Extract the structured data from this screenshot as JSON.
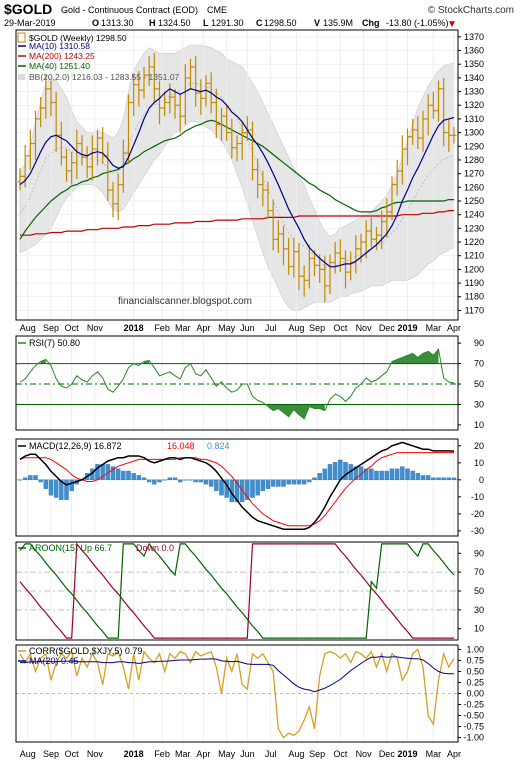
{
  "header": {
    "symbol": "$GOLD",
    "name": "Gold - Continuous Contract (EOD)",
    "exchange": "CME",
    "date": "29-Mar-2019",
    "open_label": "O",
    "open": "1313.30",
    "high_label": "H",
    "high": "1324.50",
    "low_label": "L",
    "low": "1291.30",
    "close_label": "C",
    "close": "1298.50",
    "volume_label": "V",
    "volume": "135.9M",
    "change_label": "Chg",
    "change": "-13.80 (-1.05%)",
    "copyright": "© StockCharts.com"
  },
  "watermark": "financialscanner.blogspot.com",
  "x_axis": {
    "labels": [
      "Aug",
      "Sep",
      "Oct",
      "Nov",
      "2018",
      "Feb",
      "Mar",
      "Apr",
      "May",
      "Jun",
      "Jul",
      "Aug",
      "Sep",
      "Oct",
      "Nov",
      "Dec",
      "2019",
      "Mar",
      "Apr"
    ],
    "label_weeks": [
      1.5,
      6,
      10,
      14.5,
      22,
      27.5,
      31.5,
      35.5,
      40,
      44,
      48.5,
      53.5,
      57.5,
      62,
      66.5,
      71,
      75,
      80,
      84
    ],
    "bold": [
      "2018",
      "2019"
    ]
  },
  "colors": {
    "price_bar": "#c08a00",
    "ma10": "#00008b",
    "ma200": "#c00000",
    "ma40": "#006400",
    "bb_fill": "#e6e6e6",
    "rsi_line": "#228b22",
    "macd_line": "#000000",
    "signal_line": "#ff0000",
    "histogram": "#3f8fd0",
    "aroon_up": "#006400",
    "aroon_down": "#a0002a",
    "corr_line": "#d4a020",
    "corr_ma": "#00008b"
  },
  "chart_data": [
    {
      "type": "line",
      "panel": "price",
      "legend": {
        "main": "$GOLD (Weekly) 1298.50",
        "ma10": "MA(10) 1310.58",
        "ma200": "MA(200) 1243.25",
        "ma40": "MA(40) 1251.40",
        "bb": "BB(20,2.0) 1216.03 - 1283.55 - 1351.07"
      },
      "y_ticks": [
        1170,
        1180,
        1190,
        1200,
        1210,
        1220,
        1230,
        1240,
        1250,
        1260,
        1270,
        1280,
        1290,
        1300,
        1310,
        1320,
        1330,
        1340,
        1350,
        1360,
        1370
      ],
      "ylim": [
        1163,
        1375
      ],
      "closes": [
        1268,
        1283,
        1292,
        1310,
        1318,
        1332,
        1322,
        1298,
        1282,
        1272,
        1278,
        1292,
        1282,
        1275,
        1288,
        1296,
        1283,
        1258,
        1248,
        1262,
        1285,
        1322,
        1335,
        1331,
        1342,
        1348,
        1332,
        1318,
        1322,
        1326,
        1320,
        1312,
        1340,
        1348,
        1329,
        1325,
        1336,
        1322,
        1306,
        1312,
        1300,
        1289,
        1292,
        1300,
        1302,
        1273,
        1262,
        1258,
        1243,
        1222,
        1226,
        1215,
        1202,
        1213,
        1195,
        1192,
        1208,
        1203,
        1200,
        1188,
        1205,
        1212,
        1208,
        1198,
        1205,
        1215,
        1220,
        1228,
        1222,
        1225,
        1235,
        1242,
        1262,
        1272,
        1288,
        1297,
        1302,
        1296,
        1310,
        1320,
        1316,
        1332,
        1300,
        1298,
        1298
      ],
      "ma10": [
        1262,
        1265,
        1270,
        1278,
        1286,
        1293,
        1297,
        1298,
        1296,
        1294,
        1290,
        1286,
        1284,
        1283,
        1285,
        1286,
        1285,
        1281,
        1276,
        1274,
        1275,
        1282,
        1291,
        1300,
        1310,
        1318,
        1322,
        1325,
        1329,
        1332,
        1330,
        1328,
        1330,
        1332,
        1331,
        1330,
        1331,
        1329,
        1326,
        1324,
        1320,
        1315,
        1312,
        1308,
        1302,
        1296,
        1291,
        1285,
        1278,
        1270,
        1262,
        1253,
        1244,
        1237,
        1230,
        1222,
        1216,
        1212,
        1208,
        1205,
        1202,
        1202,
        1203,
        1204,
        1204,
        1206,
        1209,
        1212,
        1215,
        1218,
        1222,
        1226,
        1232,
        1240,
        1250,
        1258,
        1267,
        1274,
        1282,
        1290,
        1298,
        1305,
        1309,
        1310,
        1311
      ],
      "ma40": [
        1222,
        1228,
        1233,
        1238,
        1242,
        1246,
        1250,
        1253,
        1256,
        1258,
        1261,
        1262,
        1264,
        1265,
        1267,
        1268,
        1270,
        1271,
        1272,
        1273,
        1276,
        1278,
        1281,
        1283,
        1286,
        1288,
        1290,
        1292,
        1294,
        1295,
        1296,
        1298,
        1301,
        1303,
        1305,
        1306,
        1308,
        1309,
        1308,
        1306,
        1304,
        1302,
        1300,
        1298,
        1296,
        1294,
        1292,
        1290,
        1287,
        1284,
        1281,
        1278,
        1275,
        1272,
        1269,
        1266,
        1263,
        1261,
        1258,
        1256,
        1254,
        1251,
        1249,
        1247,
        1245,
        1243,
        1242,
        1242,
        1242,
        1243,
        1245,
        1246,
        1248,
        1249,
        1249,
        1250,
        1250,
        1250,
        1250,
        1250,
        1250,
        1250,
        1250,
        1251,
        1251
      ],
      "ma200": [
        1225,
        1225,
        1225,
        1226,
        1226,
        1226,
        1227,
        1227,
        1227,
        1228,
        1228,
        1228,
        1228,
        1229,
        1229,
        1229,
        1230,
        1230,
        1230,
        1230,
        1231,
        1231,
        1231,
        1232,
        1232,
        1232,
        1233,
        1233,
        1233,
        1233,
        1234,
        1234,
        1234,
        1234,
        1235,
        1235,
        1235,
        1235,
        1236,
        1236,
        1236,
        1236,
        1236,
        1237,
        1237,
        1237,
        1237,
        1237,
        1238,
        1238,
        1238,
        1238,
        1238,
        1238,
        1239,
        1239,
        1239,
        1239,
        1239,
        1239,
        1239,
        1239,
        1239,
        1239,
        1239,
        1239,
        1239,
        1239,
        1239,
        1239,
        1239,
        1239,
        1239,
        1239,
        1240,
        1240,
        1240,
        1240,
        1241,
        1241,
        1241,
        1242,
        1242,
        1243,
        1243
      ],
      "bb_upper": [
        1270,
        1278,
        1290,
        1308,
        1322,
        1336,
        1340,
        1338,
        1332,
        1326,
        1316,
        1308,
        1304,
        1300,
        1300,
        1301,
        1300,
        1298,
        1296,
        1300,
        1310,
        1330,
        1345,
        1352,
        1358,
        1362,
        1360,
        1358,
        1358,
        1358,
        1358,
        1360,
        1362,
        1364,
        1364,
        1364,
        1363,
        1362,
        1360,
        1358,
        1354,
        1352,
        1350,
        1348,
        1342,
        1336,
        1330,
        1322,
        1314,
        1306,
        1298,
        1290,
        1282,
        1274,
        1268,
        1262,
        1252,
        1244,
        1235,
        1228,
        1224,
        1226,
        1230,
        1232,
        1234,
        1236,
        1238,
        1240,
        1242,
        1246,
        1250,
        1254,
        1262,
        1270,
        1282,
        1294,
        1306,
        1318,
        1326,
        1334,
        1340,
        1345,
        1349,
        1350,
        1351
      ],
      "bb_lower": [
        1212,
        1214,
        1216,
        1218,
        1222,
        1226,
        1230,
        1238,
        1246,
        1252,
        1256,
        1260,
        1262,
        1262,
        1262,
        1260,
        1256,
        1250,
        1244,
        1242,
        1244,
        1250,
        1256,
        1262,
        1268,
        1274,
        1280,
        1284,
        1290,
        1296,
        1300,
        1302,
        1305,
        1308,
        1308,
        1306,
        1304,
        1302,
        1298,
        1294,
        1288,
        1280,
        1270,
        1260,
        1248,
        1236,
        1224,
        1212,
        1202,
        1194,
        1186,
        1178,
        1172,
        1170,
        1170,
        1172,
        1174,
        1176,
        1176,
        1176,
        1176,
        1178,
        1180,
        1180,
        1182,
        1183,
        1184,
        1186,
        1188,
        1188,
        1188,
        1190,
        1192,
        1192,
        1192,
        1192,
        1194,
        1196,
        1200,
        1204,
        1206,
        1210,
        1212,
        1214,
        1216
      ]
    },
    {
      "type": "line",
      "panel": "rsi",
      "legend": "RSI(7) 50.80",
      "y_ticks": [
        10,
        30,
        50,
        70,
        90
      ],
      "ylim": [
        5,
        97
      ],
      "overbought": 70,
      "oversold": 30,
      "midline": 50,
      "values": [
        52,
        55,
        62,
        68,
        72,
        74,
        68,
        55,
        48,
        46,
        50,
        58,
        54,
        52,
        58,
        62,
        56,
        45,
        42,
        48,
        55,
        66,
        70,
        68,
        72,
        73,
        66,
        58,
        60,
        62,
        58,
        55,
        66,
        70,
        60,
        58,
        64,
        56,
        48,
        52,
        46,
        42,
        44,
        50,
        50,
        38,
        34,
        32,
        28,
        24,
        26,
        22,
        18,
        25,
        20,
        16,
        28,
        26,
        26,
        24,
        35,
        40,
        38,
        33,
        38,
        46,
        50,
        56,
        52,
        54,
        58,
        62,
        72,
        74,
        76,
        78,
        80,
        76,
        80,
        82,
        78,
        84,
        56,
        52,
        51
      ]
    },
    {
      "type": "bar",
      "panel": "macd",
      "legend": {
        "macd": "MACD(12,26,9) 16.872",
        "signal": "16.048",
        "hist": "0.824"
      },
      "y_ticks": [
        -30,
        -20,
        -10,
        0,
        10,
        20
      ],
      "ylim": [
        -33,
        24
      ],
      "macd": [
        12,
        14,
        15,
        15,
        12,
        9,
        5,
        2,
        -1,
        -3,
        -2,
        -1,
        0,
        2,
        4,
        7,
        9,
        11,
        12,
        13,
        13,
        14,
        14,
        14,
        13,
        11,
        10,
        11,
        12,
        13,
        13,
        12,
        13,
        13,
        12,
        11,
        10,
        8,
        5,
        1,
        -3,
        -8,
        -12,
        -16,
        -19,
        -22,
        -24,
        -25,
        -26,
        -27,
        -28,
        -29,
        -29,
        -29,
        -29,
        -29,
        -28,
        -25,
        -21,
        -16,
        -10,
        -5,
        0,
        3,
        5,
        7,
        9,
        11,
        13,
        15,
        17,
        18,
        20,
        21,
        22,
        21,
        20,
        19,
        18,
        18,
        17,
        17,
        17,
        17,
        16.9
      ],
      "signal": [
        12,
        13,
        13,
        13,
        13,
        13,
        12,
        10,
        8,
        6,
        3,
        1,
        0,
        -1,
        -1,
        0,
        2,
        4,
        6,
        8,
        9,
        10,
        11,
        12,
        12,
        12,
        12,
        12,
        12,
        12,
        12,
        13,
        13,
        13,
        13,
        12,
        12,
        11,
        10,
        8,
        5,
        2,
        -2,
        -6,
        -10,
        -14,
        -17,
        -20,
        -22,
        -24,
        -25,
        -26,
        -27,
        -27,
        -27,
        -27,
        -27,
        -26,
        -24,
        -21,
        -17,
        -13,
        -9,
        -5,
        -2,
        1,
        3,
        6,
        8,
        11,
        13,
        14,
        15,
        16,
        16,
        16,
        16,
        16,
        16,
        16,
        16,
        16,
        16,
        16,
        16
      ]
    },
    {
      "type": "line",
      "panel": "aroon",
      "legend": {
        "up": "AROON(15) Up 66.7",
        "down": "Down 0.0"
      },
      "y_ticks": [
        10,
        30,
        50,
        70,
        90
      ],
      "ylim": [
        -2,
        102
      ],
      "aroon_up": [
        93,
        100,
        100,
        93,
        87,
        80,
        73,
        67,
        60,
        53,
        47,
        40,
        33,
        27,
        20,
        13,
        7,
        0,
        0,
        0,
        100,
        100,
        100,
        93,
        87,
        100,
        93,
        87,
        80,
        73,
        67,
        100,
        100,
        93,
        87,
        80,
        73,
        67,
        60,
        53,
        47,
        40,
        33,
        27,
        20,
        13,
        7,
        0,
        0,
        0,
        0,
        0,
        0,
        0,
        0,
        0,
        0,
        0,
        0,
        0,
        0,
        0,
        0,
        0,
        0,
        0,
        0,
        0,
        60,
        53,
        100,
        100,
        100,
        100,
        100,
        100,
        93,
        87,
        100,
        100,
        93,
        87,
        80,
        73,
        67
      ],
      "aroon_down": [
        60,
        53,
        47,
        40,
        33,
        27,
        20,
        13,
        7,
        0,
        0,
        100,
        93,
        87,
        80,
        73,
        67,
        60,
        53,
        47,
        40,
        33,
        27,
        20,
        13,
        7,
        0,
        0,
        0,
        0,
        0,
        0,
        0,
        0,
        0,
        0,
        0,
        0,
        0,
        0,
        0,
        0,
        0,
        0,
        0,
        100,
        100,
        100,
        100,
        100,
        100,
        100,
        100,
        100,
        100,
        100,
        100,
        100,
        100,
        100,
        100,
        100,
        93,
        87,
        80,
        73,
        67,
        60,
        53,
        47,
        40,
        33,
        27,
        20,
        13,
        7,
        0,
        0,
        0,
        0,
        0,
        0,
        0,
        0,
        0
      ]
    },
    {
      "type": "line",
      "panel": "corr",
      "legend": {
        "corr": "CORR($GOLD,$XJY,5) 0.79",
        "ma": "MA(20) 0.45"
      },
      "y_ticks": [
        "1.00",
        "0.75",
        "0.50",
        "0.25",
        "0.00",
        "-0.25",
        "-0.50",
        "-0.75",
        "-1.00"
      ],
      "ylim": [
        -1.1,
        1.1
      ],
      "corr": [
        0.9,
        0.7,
        0.9,
        0.5,
        0.8,
        0.9,
        0.3,
        0.7,
        0.9,
        0.8,
        0.95,
        0.4,
        0.8,
        0.6,
        0.9,
        0.7,
        0.2,
        0.9,
        0.85,
        0.95,
        0.6,
        0.1,
        0.9,
        0.3,
        0.95,
        0.8,
        0.7,
        0.9,
        0.5,
        0.9,
        0.8,
        0.95,
        0.9,
        0.7,
        0.95,
        0.85,
        0.9,
        0.95,
        0.6,
        0.0,
        0.8,
        0.5,
        0.9,
        0.2,
        0.1,
        0.9,
        0.8,
        0.9,
        0.7,
        0.5,
        -0.8,
        -1.0,
        -0.9,
        -0.95,
        -0.85,
        -0.6,
        -0.3,
        -0.8,
        0.4,
        0.9,
        0.95,
        0.9,
        0.8,
        0.9,
        0.7,
        0.95,
        0.9,
        0.8,
        0.95,
        0.6,
        0.9,
        0.5,
        0.9,
        0.8,
        0.3,
        0.5,
        0.9,
        1.0,
        0.6,
        -0.5,
        -0.7,
        0.3,
        0.9,
        0.6,
        0.79
      ],
      "ma": [
        0.7,
        0.7,
        0.72,
        0.72,
        0.73,
        0.73,
        0.72,
        0.72,
        0.73,
        0.73,
        0.74,
        0.72,
        0.72,
        0.72,
        0.72,
        0.72,
        0.7,
        0.7,
        0.7,
        0.72,
        0.72,
        0.7,
        0.7,
        0.68,
        0.7,
        0.72,
        0.72,
        0.73,
        0.73,
        0.74,
        0.75,
        0.76,
        0.76,
        0.76,
        0.77,
        0.78,
        0.78,
        0.79,
        0.78,
        0.74,
        0.73,
        0.72,
        0.73,
        0.7,
        0.67,
        0.66,
        0.66,
        0.66,
        0.66,
        0.64,
        0.52,
        0.42,
        0.32,
        0.22,
        0.14,
        0.1,
        0.08,
        0.04,
        0.08,
        0.12,
        0.18,
        0.25,
        0.32,
        0.42,
        0.52,
        0.6,
        0.68,
        0.76,
        0.82,
        0.82,
        0.84,
        0.82,
        0.83,
        0.83,
        0.81,
        0.8,
        0.79,
        0.79,
        0.76,
        0.68,
        0.58,
        0.5,
        0.46,
        0.45,
        0.45
      ]
    }
  ]
}
